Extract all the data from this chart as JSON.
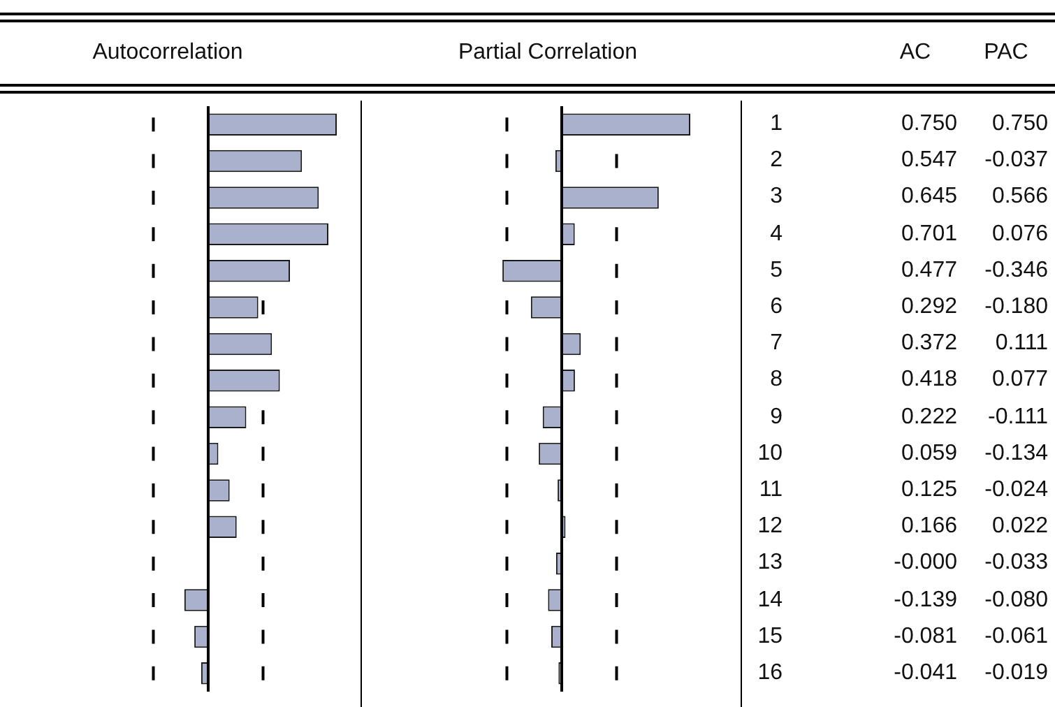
{
  "chart_data": [
    {
      "type": "bar",
      "orientation": "horizontal",
      "title": "Autocorrelation",
      "categories": [
        "1",
        "2",
        "3",
        "4",
        "5",
        "6",
        "7",
        "8",
        "9",
        "10",
        "11",
        "12",
        "13",
        "14",
        "15",
        "16"
      ],
      "series": [
        {
          "name": "AC",
          "color": "#a9b1cc",
          "values": [
            0.75,
            0.547,
            0.645,
            0.701,
            0.477,
            0.292,
            0.372,
            0.418,
            0.222,
            0.059,
            0.125,
            0.166,
            -0.0,
            -0.139,
            -0.081,
            -0.041
          ],
          "value_labels": [
            "0.750",
            "0.547",
            "0.645",
            "0.701",
            "0.477",
            "0.292",
            "0.372",
            "0.418",
            "0.222",
            "0.059",
            "0.125",
            "0.166",
            "-0.000",
            "-0.139",
            "-0.081",
            "-0.041"
          ]
        }
      ],
      "tick_labels": false,
      "legend": false,
      "ref_lines": [
        {
          "axis": "x",
          "value": -0.32,
          "line_style": "dashed",
          "color": "#000000"
        },
        {
          "axis": "x",
          "value": 0.32,
          "line_style": "dashed",
          "color": "#000000"
        }
      ]
    },
    {
      "type": "bar",
      "orientation": "horizontal",
      "title": "Partial Correlation",
      "categories": [
        "1",
        "2",
        "3",
        "4",
        "5",
        "6",
        "7",
        "8",
        "9",
        "10",
        "11",
        "12",
        "13",
        "14",
        "15",
        "16"
      ],
      "series": [
        {
          "name": "PAC",
          "color": "#a9b1cc",
          "values": [
            0.75,
            -0.037,
            0.566,
            0.076,
            -0.346,
            -0.18,
            0.111,
            0.077,
            -0.111,
            -0.134,
            -0.024,
            0.022,
            -0.033,
            -0.08,
            -0.061,
            -0.019
          ],
          "value_labels": [
            "0.750",
            "-0.037",
            "0.566",
            "0.076",
            "-0.346",
            "-0.180",
            "0.111",
            "0.077",
            "-0.111",
            "-0.134",
            "-0.024",
            "0.022",
            "-0.033",
            "-0.080",
            "-0.061",
            "-0.019"
          ]
        }
      ],
      "tick_labels": false,
      "legend": false,
      "ref_lines": [
        {
          "axis": "x",
          "value": -0.32,
          "line_style": "dashed",
          "color": "#000000"
        },
        {
          "axis": "x",
          "value": 0.32,
          "line_style": "dashed",
          "color": "#000000"
        }
      ]
    }
  ]
}
